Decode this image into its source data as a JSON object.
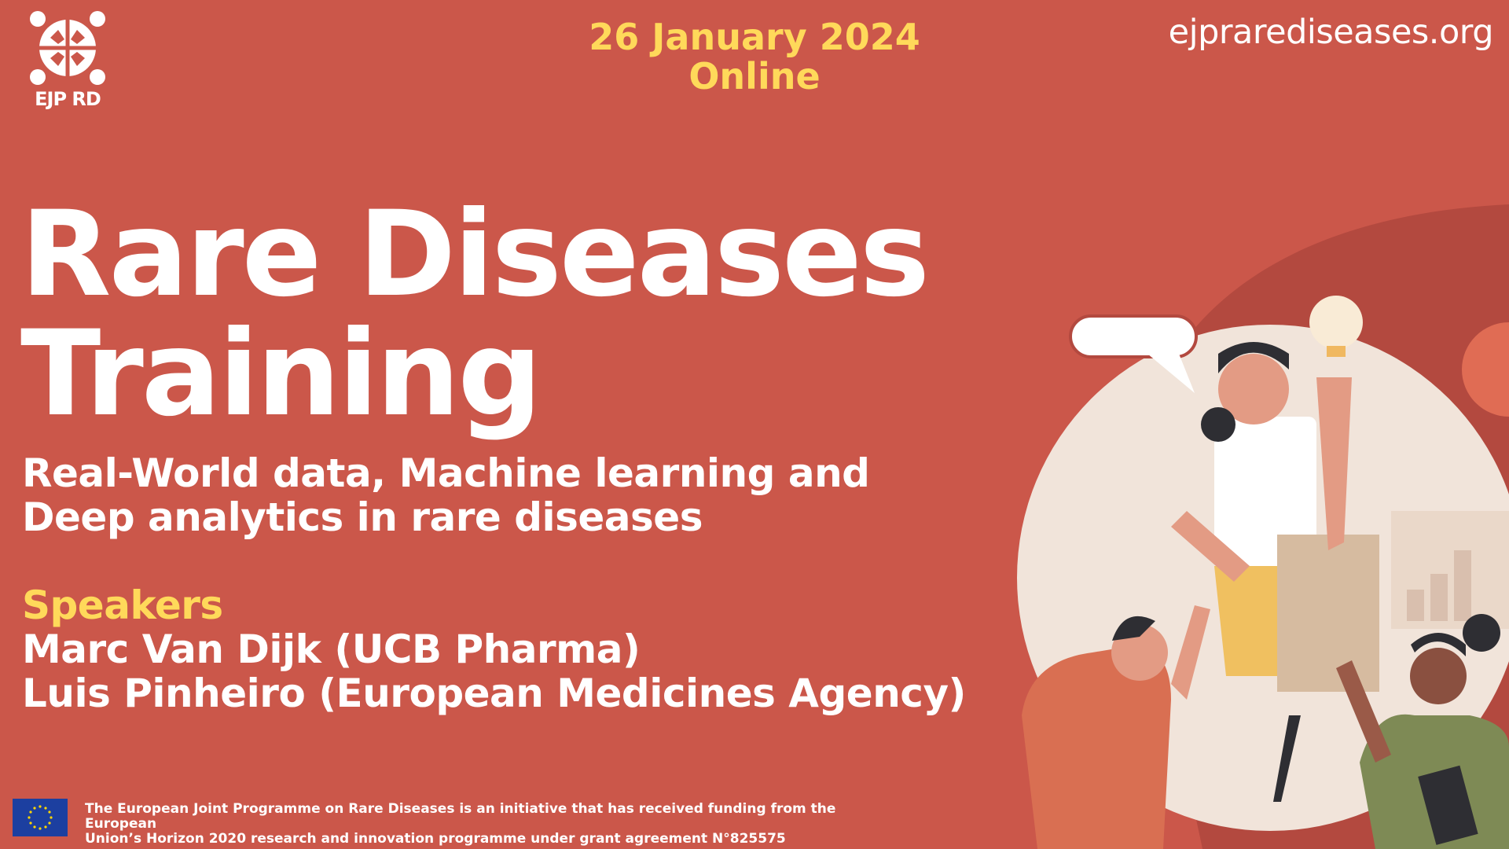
{
  "logo": {
    "text": "EJP RD"
  },
  "header": {
    "date": "26 January 2024",
    "location": "Online",
    "website": "ejprarediseases.org"
  },
  "title": {
    "line1": "Rare Diseases",
    "line2": "Training"
  },
  "subtitle": {
    "line1": "Real-World data, Machine learning and",
    "line2": "Deep analytics in rare diseases"
  },
  "speakers": {
    "heading": "Speakers",
    "items": [
      "Marc Van Dijk (UCB Pharma)",
      "Luis Pinheiro (European Medicines Agency)"
    ]
  },
  "footer": {
    "line1": "The European Joint Programme on Rare Diseases is an initiative that has received funding from the European",
    "line2": "Union’s Horizon 2020 research and innovation programme under grant agreement N°825575"
  },
  "colors": {
    "background": "#CB574A",
    "accent": "#FFD95A",
    "blob": "#B3493F",
    "circle": "#F1E4DA"
  }
}
